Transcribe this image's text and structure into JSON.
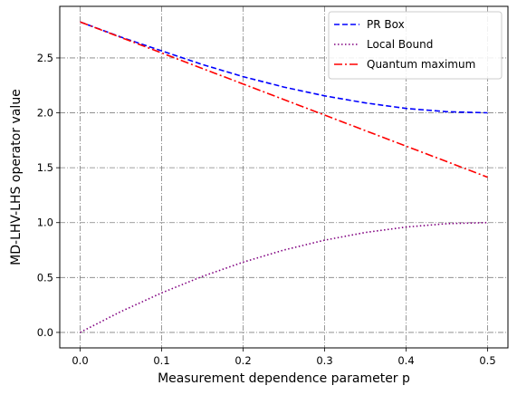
{
  "chart_data": {
    "type": "line",
    "title": "",
    "xlabel": "Measurement dependence parameter p",
    "ylabel": "MD-LHV-LHS operator value",
    "xlim": [
      -0.025,
      0.525
    ],
    "ylim": [
      -0.141,
      2.97
    ],
    "xticks": [
      0.0,
      0.1,
      0.2,
      0.3,
      0.4,
      0.5
    ],
    "xtick_labels": [
      "0.0",
      "0.1",
      "0.2",
      "0.3",
      "0.4",
      "0.5"
    ],
    "yticks": [
      0.0,
      0.5,
      1.0,
      1.5,
      2.0,
      2.5
    ],
    "ytick_labels": [
      "0.0",
      "0.5",
      "1.0",
      "1.5",
      "2.0",
      "2.5"
    ],
    "grid": true,
    "legend_position": "top-right",
    "x": [
      0.0,
      0.05,
      0.1,
      0.15,
      0.2,
      0.25,
      0.3,
      0.35,
      0.4,
      0.45,
      0.5
    ],
    "series": [
      {
        "name": "PR Box",
        "color": "#0000ff",
        "dash": "dashed",
        "values": [
          2.828,
          2.69,
          2.565,
          2.44,
          2.33,
          2.235,
          2.155,
          2.09,
          2.04,
          2.01,
          2.0
        ]
      },
      {
        "name": "Local Bound",
        "color": "#800080",
        "dash": "dotted",
        "values": [
          0.0,
          0.19,
          0.36,
          0.51,
          0.64,
          0.75,
          0.84,
          0.91,
          0.96,
          0.99,
          1.0
        ]
      },
      {
        "name": "Quantum maximum",
        "color": "#ff0000",
        "dash": "dashdot",
        "values": [
          2.828,
          2.687,
          2.546,
          2.404,
          2.263,
          2.121,
          1.98,
          1.838,
          1.697,
          1.556,
          1.414
        ]
      }
    ]
  }
}
